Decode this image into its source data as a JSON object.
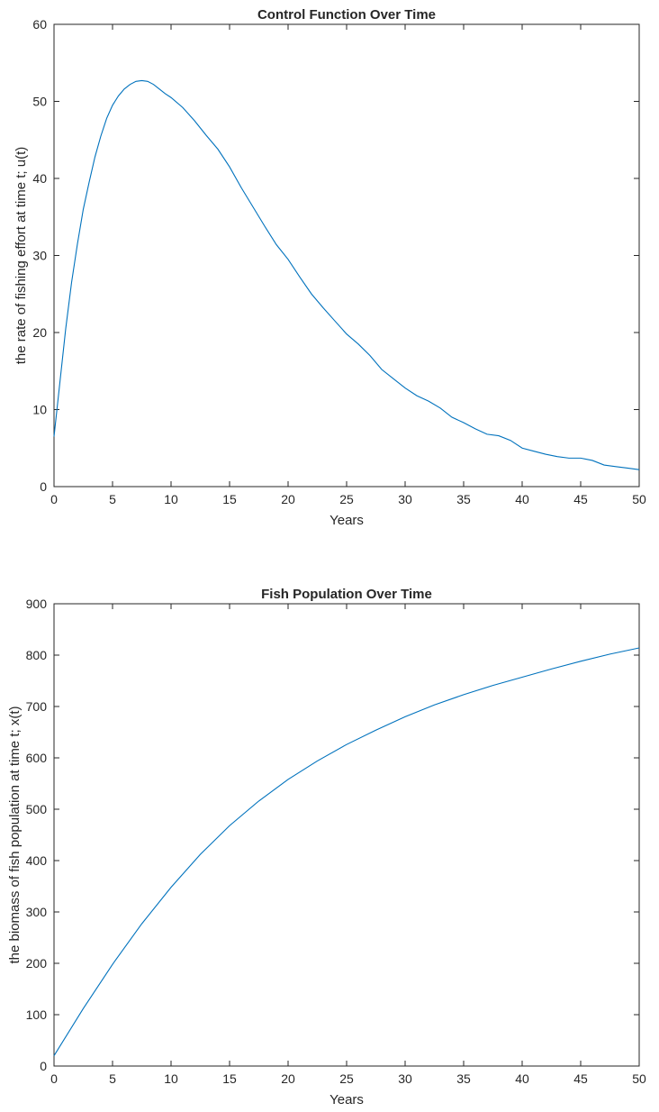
{
  "colors": {
    "series": "#0072BD",
    "axes": "#262626",
    "background": "#ffffff"
  },
  "chart_data": [
    {
      "type": "line",
      "title": "Control Function Over Time",
      "xlabel": "Years",
      "ylabel": "the rate of fishing effort at time t; u(t)",
      "xlim": [
        0,
        50
      ],
      "ylim": [
        0,
        60
      ],
      "xticks": [
        0,
        5,
        10,
        15,
        20,
        25,
        30,
        35,
        40,
        45,
        50
      ],
      "yticks": [
        0,
        10,
        20,
        30,
        40,
        50,
        60
      ],
      "grid": false,
      "legend": "none",
      "series": [
        {
          "x": [
            0,
            0.5,
            1,
            1.5,
            2,
            2.5,
            3,
            3.5,
            4,
            4.5,
            5,
            5.5,
            6,
            6.5,
            7,
            7.5,
            8,
            8.5,
            9,
            9.5,
            10,
            11,
            12,
            13,
            14,
            15,
            16,
            17,
            18,
            19,
            20,
            21,
            22,
            23,
            24,
            25,
            26,
            27,
            28,
            29,
            30,
            31,
            32,
            33,
            34,
            35,
            36,
            37,
            38,
            39,
            40,
            41,
            42,
            43,
            44,
            45,
            46,
            47,
            48,
            49,
            50
          ],
          "y": [
            6.5,
            13.5,
            20.5,
            26.5,
            31.5,
            36.0,
            39.5,
            42.8,
            45.5,
            47.8,
            49.5,
            50.7,
            51.6,
            52.2,
            52.6,
            52.7,
            52.6,
            52.2,
            51.6,
            51.0,
            50.5,
            49.2,
            47.5,
            45.6,
            43.8,
            41.5,
            38.8,
            36.3,
            33.8,
            31.4,
            29.5,
            27.2,
            25.0,
            23.2,
            21.5,
            19.8,
            18.5,
            17.0,
            15.2,
            14.0,
            12.8,
            11.8,
            11.1,
            10.2,
            9.0,
            8.3,
            7.5,
            6.8,
            6.6,
            6.0,
            5.0,
            4.6,
            4.2,
            3.9,
            3.7,
            3.7,
            3.4,
            2.8,
            2.6,
            2.4,
            2.2
          ]
        }
      ]
    },
    {
      "type": "line",
      "title": "Fish Population Over Time",
      "xlabel": "Years",
      "ylabel": "the biomass of fish population at time t; x(t)",
      "xlim": [
        0,
        50
      ],
      "ylim": [
        0,
        900
      ],
      "xticks": [
        0,
        5,
        10,
        15,
        20,
        25,
        30,
        35,
        40,
        45,
        50
      ],
      "yticks": [
        0,
        100,
        200,
        300,
        400,
        500,
        600,
        700,
        800,
        900
      ],
      "grid": false,
      "legend": "none",
      "series": [
        {
          "x": [
            0,
            2.5,
            5,
            7.5,
            10,
            12.5,
            15,
            17.5,
            20,
            22.5,
            25,
            27.5,
            30,
            32.5,
            35,
            37.5,
            40,
            42.5,
            45,
            47.5,
            50
          ],
          "y": [
            20,
            112,
            198,
            277,
            348,
            412,
            468,
            516,
            558,
            594,
            626,
            654,
            680,
            703,
            723,
            741,
            757,
            773,
            788,
            802,
            814
          ]
        }
      ]
    }
  ]
}
